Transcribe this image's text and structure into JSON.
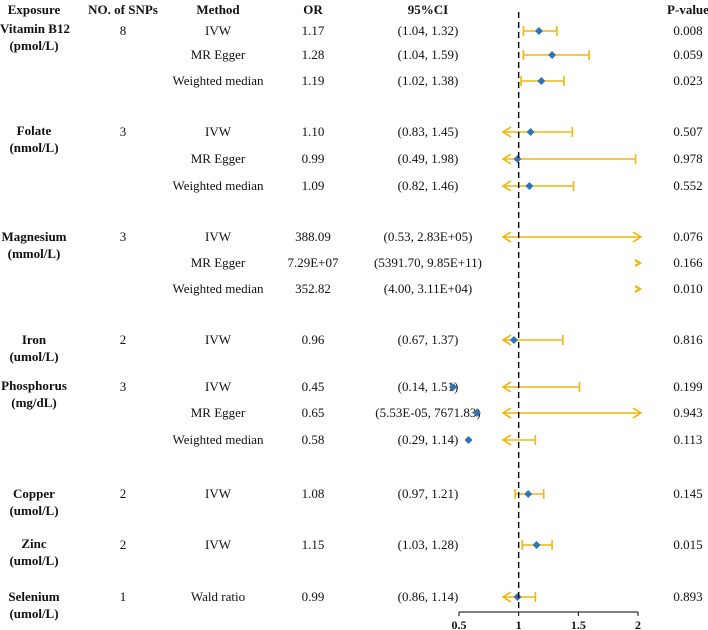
{
  "headers": {
    "exposure": "Exposure",
    "snps": "NO. of SNPs",
    "method": "Method",
    "or": "OR",
    "ci": "95%CI",
    "pvalue": "P-value"
  },
  "colors": {
    "ci": "#F2B50F",
    "point": "#2E75B6",
    "ref": "#000000"
  },
  "chart_data": {
    "type": "forest",
    "xaxis": {
      "ticks": [
        0.5,
        1,
        1.5,
        2
      ],
      "tick_labels": [
        "0.5",
        "1",
        "1.5",
        "2"
      ],
      "range": [
        0.5,
        2
      ],
      "reference": 1
    },
    "groups": [
      {
        "exposure": "Vitamin B12",
        "unit": "(pmol/L)",
        "snps": "8",
        "rows": [
          {
            "method": "IVW",
            "or": "1.17",
            "ci": "(1.04, 1.32)",
            "p": "0.008",
            "est": 1.17,
            "lo": 1.04,
            "hi": 1.32
          },
          {
            "method": "MR Egger",
            "or": "1.28",
            "ci": "(1.04, 1.59)",
            "p": "0.059",
            "est": 1.28,
            "lo": 1.04,
            "hi": 1.59
          },
          {
            "method": "Weighted median",
            "or": "1.19",
            "ci": "(1.02, 1.38)",
            "p": "0.023",
            "est": 1.19,
            "lo": 1.02,
            "hi": 1.38
          }
        ]
      },
      {
        "exposure": "Folate",
        "unit": "(nmol/L)",
        "snps": "3",
        "rows": [
          {
            "method": "IVW",
            "or": "1.10",
            "ci": "(0.83, 1.45)",
            "p": "0.507",
            "est": 1.1,
            "lo": 0.83,
            "hi": 1.45
          },
          {
            "method": "MR Egger",
            "or": "0.99",
            "ci": "(0.49, 1.98)",
            "p": "0.978",
            "est": 0.99,
            "lo": 0.49,
            "hi": 1.98
          },
          {
            "method": "Weighted median",
            "or": "1.09",
            "ci": "(0.82, 1.46)",
            "p": "0.552",
            "est": 1.09,
            "lo": 0.82,
            "hi": 1.46
          }
        ]
      },
      {
        "exposure": "Magnesium",
        "unit": "(mmol/L)",
        "snps": "3",
        "rows": [
          {
            "method": "IVW",
            "or": "388.09",
            "ci": "(0.53, 2.83E+05)",
            "p": "0.076",
            "est": 388.09,
            "lo": 0.53,
            "hi": 283000
          },
          {
            "method": "MR Egger",
            "or": "7.29E+07",
            "ci": "(5391.70, 9.85E+11)",
            "p": "0.166",
            "est": 72900000,
            "lo": 5391.7,
            "hi": 985000000000
          },
          {
            "method": "Weighted median",
            "or": "352.82",
            "ci": "(4.00, 3.11E+04)",
            "p": "0.010",
            "est": 352.82,
            "lo": 4.0,
            "hi": 31100
          }
        ]
      },
      {
        "exposure": "Iron",
        "unit": "(umol/L)",
        "snps": "2",
        "rows": [
          {
            "method": "IVW",
            "or": "0.96",
            "ci": "(0.67, 1.37)",
            "p": "0.816",
            "est": 0.96,
            "lo": 0.67,
            "hi": 1.37
          }
        ]
      },
      {
        "exposure": "Phosphorus",
        "unit": "(mg/dL)",
        "snps": "3",
        "rows": [
          {
            "method": "IVW",
            "or": "0.45",
            "ci": "(0.14, 1.51)",
            "p": "0.199",
            "est": 0.45,
            "lo": 0.14,
            "hi": 1.51
          },
          {
            "method": "MR Egger",
            "or": "0.65",
            "ci": "(5.53E-05, 7671.83)",
            "p": "0.943",
            "est": 0.65,
            "lo": 5.53e-05,
            "hi": 7671.83
          },
          {
            "method": "Weighted median",
            "or": "0.58",
            "ci": "(0.29, 1.14)",
            "p": "0.113",
            "est": 0.58,
            "lo": 0.29,
            "hi": 1.14
          }
        ]
      },
      {
        "exposure": "Copper",
        "unit": "(umol/L)",
        "snps": "2",
        "rows": [
          {
            "method": "IVW",
            "or": "1.08",
            "ci": "(0.97, 1.21)",
            "p": "0.145",
            "est": 1.08,
            "lo": 0.97,
            "hi": 1.21
          }
        ]
      },
      {
        "exposure": "Zinc",
        "unit": "(umol/L)",
        "snps": "2",
        "rows": [
          {
            "method": "IVW",
            "or": "1.15",
            "ci": "(1.03, 1.28)",
            "p": "0.015",
            "est": 1.15,
            "lo": 1.03,
            "hi": 1.28
          }
        ]
      },
      {
        "exposure": "Selenium",
        "unit": "(umol/L)",
        "snps": "1",
        "rows": [
          {
            "method": "Wald ratio",
            "or": "0.99",
            "ci": "(0.86, 1.14)",
            "p": "0.893",
            "est": 0.99,
            "lo": 0.86,
            "hi": 1.14
          }
        ]
      }
    ]
  }
}
